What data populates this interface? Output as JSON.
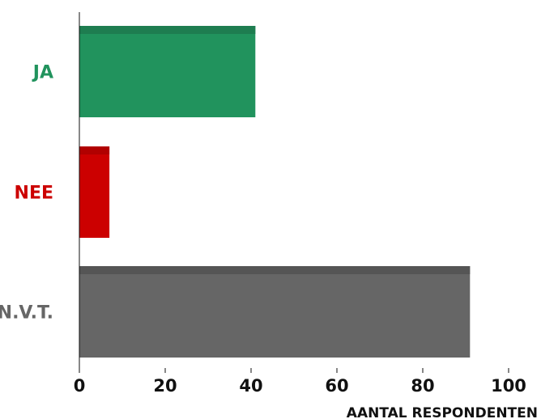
{
  "chart_data": {
    "type": "bar",
    "orientation": "horizontal",
    "categories": [
      "JA",
      "NEE",
      "N.V.T."
    ],
    "values": [
      41,
      7,
      91
    ],
    "colors": [
      "#21935d",
      "#cc0000",
      "#666666"
    ],
    "top_band_colors": [
      "#1e7d50",
      "#b10000",
      "#555555"
    ],
    "title": "",
    "xlabel": "AANTAL RESPONDENTEN",
    "ylabel": "",
    "xlim": [
      0,
      100
    ],
    "xticks": [
      0,
      20,
      40,
      60,
      80,
      100
    ],
    "xtick_labels": [
      "0",
      "20",
      "40",
      "60",
      "80",
      "100"
    ],
    "grid": false,
    "legend": "none"
  }
}
